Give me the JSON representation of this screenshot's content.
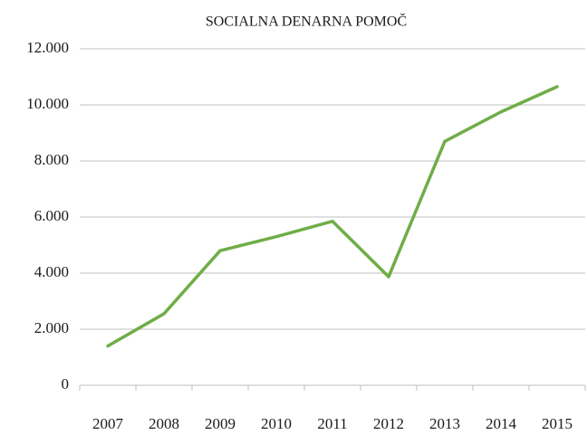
{
  "chart_data": {
    "type": "line",
    "title": "SOCIALNA DENARNA POMOČ",
    "categories": [
      "2007",
      "2008",
      "2009",
      "2010",
      "2011",
      "2012",
      "2013",
      "2014",
      "2015"
    ],
    "series": [
      {
        "name": "Socialna denarna pomoč",
        "color": "#70ad47",
        "values": [
          1400,
          2550,
          4800,
          5300,
          5850,
          3870,
          8700,
          9750,
          10650
        ]
      }
    ],
    "ylim": [
      0,
      12000
    ],
    "yticks": [
      0,
      {
        "value": 2000,
        "label": "2.000"
      },
      {
        "value": 4000,
        "label": "4.000"
      },
      {
        "value": 6000,
        "label": "6.000"
      },
      {
        "value": 8000,
        "label": "8.000"
      },
      {
        "value": 10000,
        "label": "10.000"
      },
      {
        "value": 12000,
        "label": "12.000"
      }
    ],
    "grid": true
  }
}
